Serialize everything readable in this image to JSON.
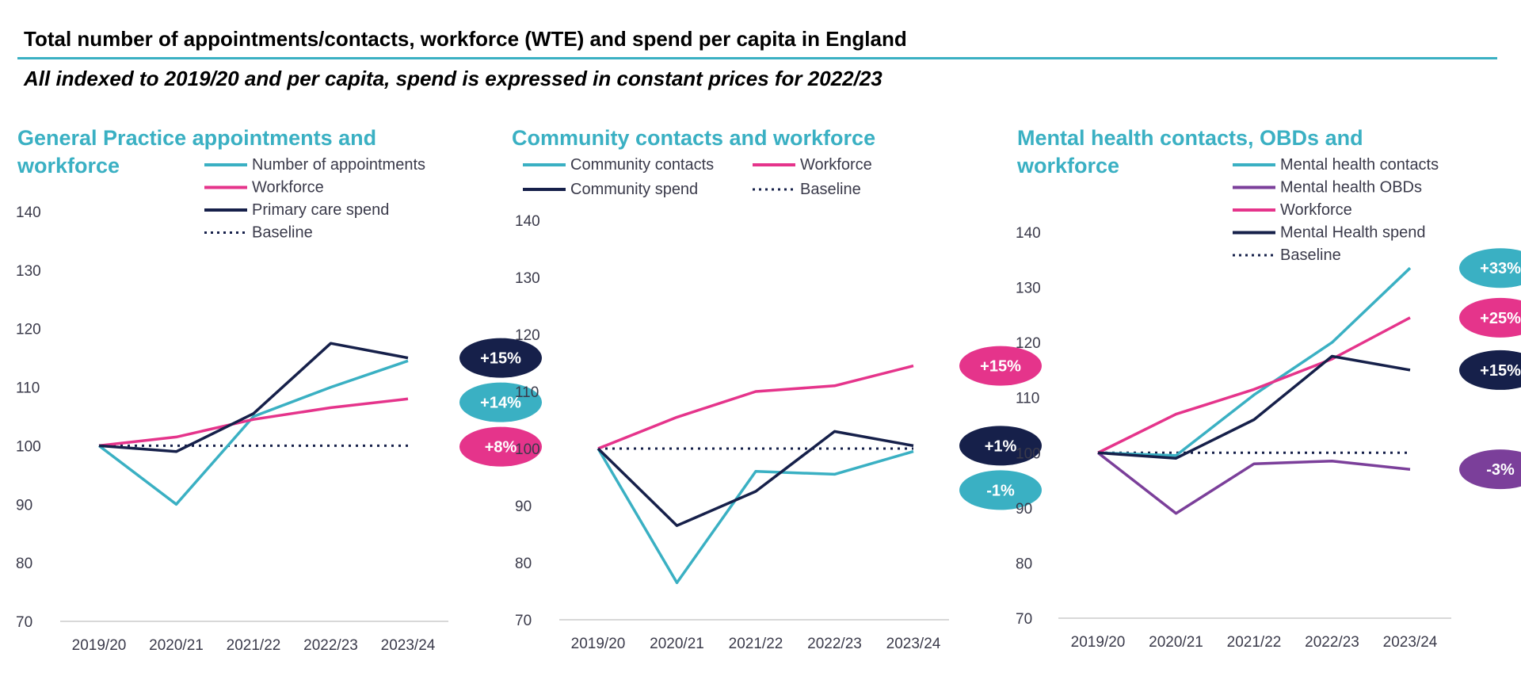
{
  "title": "Total number of appointments/contacts, workforce (WTE) and spend per capita in England",
  "subtitle": "All indexed to 2019/20 and per capita, spend is expressed in constant prices for 2022/23",
  "colors": {
    "teal": "#3ab0c3",
    "pink": "#e5348b",
    "navy": "#16204a",
    "purple": "#7b3f9a",
    "axis": "#cccccc",
    "text": "#3a3a4a"
  },
  "chart_data": [
    {
      "type": "line",
      "title": "General Practice appointments and workforce",
      "title_lines": [
        "General Practice appointments and",
        "workforce"
      ],
      "categories": [
        "2019/20",
        "2020/21",
        "2021/22",
        "2022/23",
        "2023/24"
      ],
      "ylim": [
        70,
        140
      ],
      "yticks": [
        "70",
        "80",
        "90",
        "100",
        "110",
        "120",
        "130",
        "140"
      ],
      "legend_layout": "one-column",
      "series": [
        {
          "name": "Number of appointments",
          "color": "teal",
          "style": "solid",
          "values": [
            100,
            90,
            105,
            110,
            114.5
          ],
          "label": "+14%"
        },
        {
          "name": "Workforce",
          "color": "pink",
          "style": "solid",
          "values": [
            100,
            101.5,
            104.5,
            106.5,
            108
          ],
          "label": "+8%"
        },
        {
          "name": "Primary care spend",
          "color": "navy",
          "style": "solid",
          "values": [
            100,
            99,
            105.5,
            117.5,
            115
          ],
          "label": "+15%"
        },
        {
          "name": "Baseline",
          "color": "navy",
          "style": "dotted",
          "values": [
            100,
            100,
            100,
            100,
            100
          ]
        }
      ]
    },
    {
      "type": "line",
      "title": "Community contacts and workforce",
      "title_lines": [
        "Community contacts and workforce"
      ],
      "categories": [
        "2019/20",
        "2020/21",
        "2021/22",
        "2022/23",
        "2023/24"
      ],
      "ylim": [
        70,
        140
      ],
      "yticks": [
        "70",
        "80",
        "90",
        "100",
        "110",
        "120",
        "130",
        "140"
      ],
      "legend_layout": "two-column",
      "series": [
        {
          "name": "Community contacts",
          "color": "teal",
          "style": "solid",
          "values": [
            100,
            76.5,
            96,
            95.5,
            99.5
          ],
          "label": "-1%"
        },
        {
          "name": "Workforce",
          "color": "pink",
          "style": "solid",
          "values": [
            100,
            105.5,
            110,
            111,
            114.5
          ],
          "label": "+15%"
        },
        {
          "name": "Community spend",
          "color": "navy",
          "style": "solid",
          "values": [
            100,
            86.5,
            92.5,
            103,
            100.5
          ],
          "label": "+1%"
        },
        {
          "name": "Baseline",
          "color": "navy",
          "style": "dotted",
          "values": [
            100,
            100,
            100,
            100,
            100
          ]
        }
      ]
    },
    {
      "type": "line",
      "title": "Mental health contacts, OBDs and workforce",
      "title_lines": [
        "Mental health contacts, OBDs and",
        "workforce"
      ],
      "categories": [
        "2019/20",
        "2020/21",
        "2021/22",
        "2022/23",
        "2023/24"
      ],
      "ylim": [
        70,
        140
      ],
      "yticks": [
        "70",
        "80",
        "90",
        "100",
        "110",
        "120",
        "130",
        "140"
      ],
      "legend_layout": "one-column",
      "series": [
        {
          "name": "Mental health contacts",
          "color": "teal",
          "style": "solid",
          "values": [
            100,
            99.5,
            110.5,
            120,
            133.5
          ],
          "label": "+33%"
        },
        {
          "name": "Mental health OBDs",
          "color": "purple",
          "style": "solid",
          "values": [
            100,
            89,
            98,
            98.5,
            97
          ],
          "label": "-3%"
        },
        {
          "name": "Workforce",
          "color": "pink",
          "style": "solid",
          "values": [
            100,
            107,
            111.5,
            117,
            124.5
          ],
          "label": "+25%"
        },
        {
          "name": "Mental Health spend",
          "color": "navy",
          "style": "solid",
          "values": [
            100,
            99,
            106,
            117.5,
            115
          ],
          "label": "+15%"
        },
        {
          "name": "Baseline",
          "color": "navy",
          "style": "dotted",
          "values": [
            100,
            100,
            100,
            100,
            100
          ]
        }
      ]
    }
  ]
}
